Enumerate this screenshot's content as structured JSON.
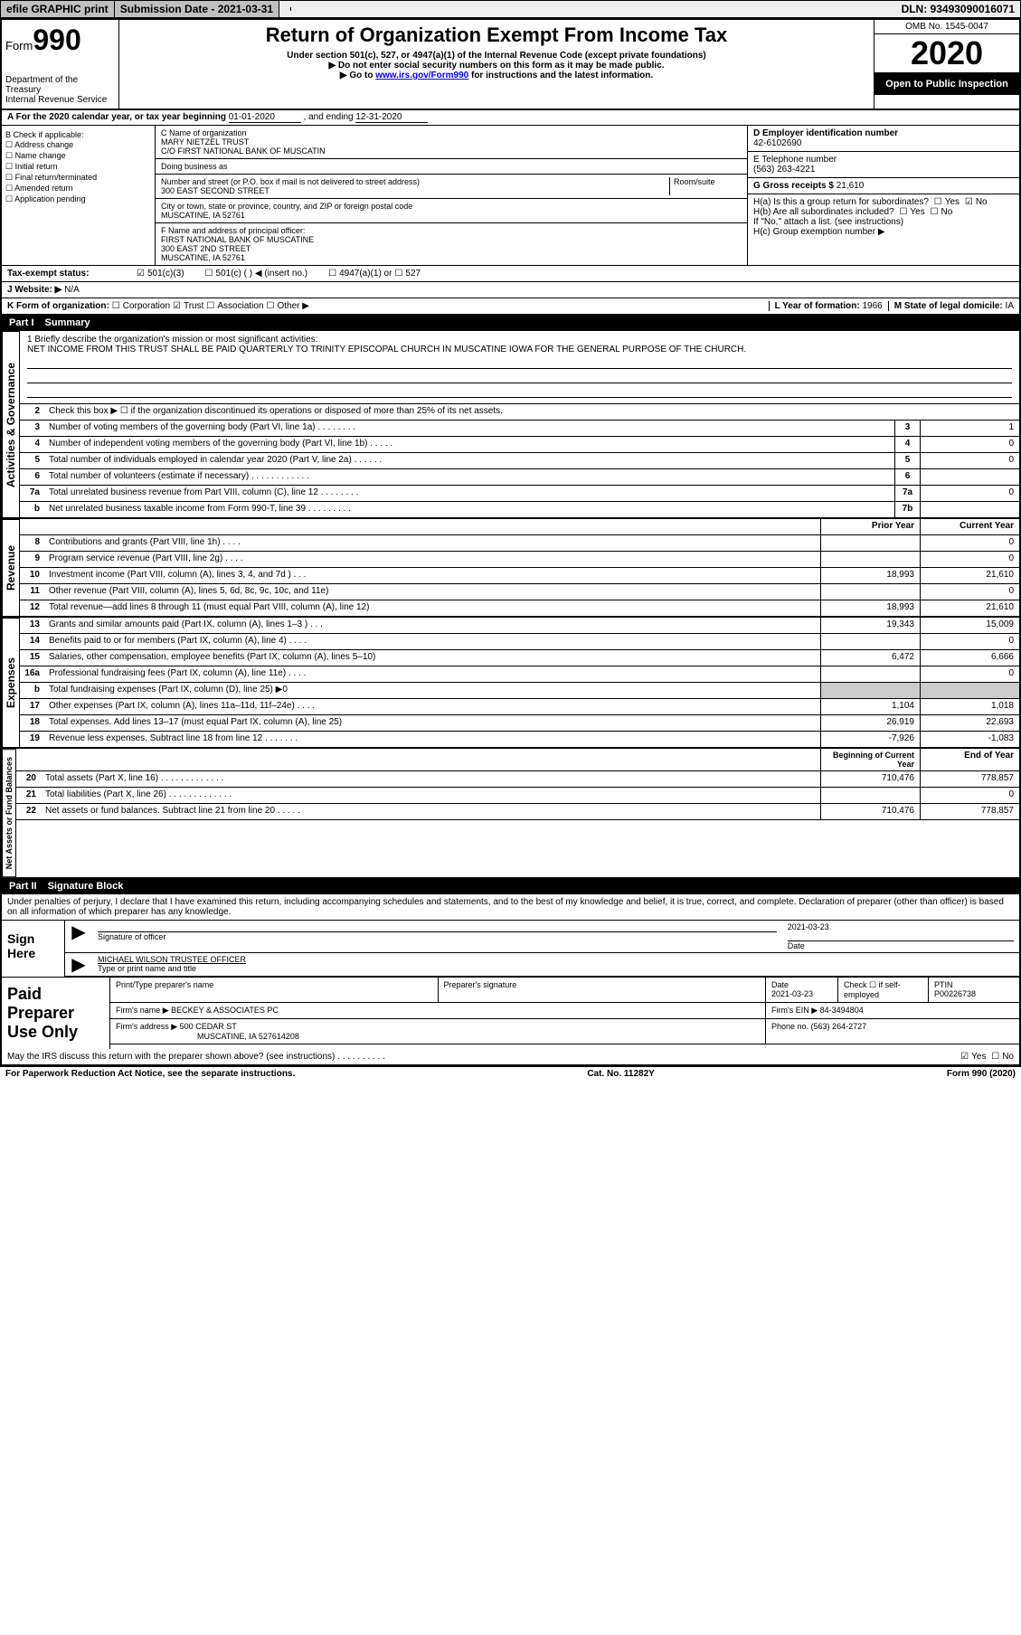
{
  "topbar": {
    "efile": "efile GRAPHIC print",
    "sub_label": "Submission Date - 2021-03-31",
    "dln": "DLN: 93493090016071"
  },
  "header": {
    "form_word": "Form",
    "form_num": "990",
    "dept1": "Department of the Treasury",
    "dept2": "Internal Revenue Service",
    "title": "Return of Organization Exempt From Income Tax",
    "sub1": "Under section 501(c), 527, or 4947(a)(1) of the Internal Revenue Code (except private foundations)",
    "sub2": "▶ Do not enter social security numbers on this form as it may be made public.",
    "sub3_a": "▶ Go to ",
    "sub3_link": "www.irs.gov/Form990",
    "sub3_b": " for instructions and the latest information.",
    "omb": "OMB No. 1545-0047",
    "year": "2020",
    "inspect": "Open to Public Inspection"
  },
  "rowA": {
    "text_a": "A For the 2020 calendar year, or tax year beginning ",
    "begin": "01-01-2020",
    "text_b": " , and ending ",
    "end": "12-31-2020"
  },
  "colB": {
    "hdr": "B Check if applicable:",
    "i1": "Address change",
    "i2": "Name change",
    "i3": "Initial return",
    "i4": "Final return/terminated",
    "i5": "Amended return",
    "i6": "Application pending"
  },
  "colC": {
    "name_lbl": "C Name of organization",
    "name1": "MARY NIETZEL TRUST",
    "name2": "C/O FIRST NATIONAL BANK OF MUSCATIN",
    "dba_lbl": "Doing business as",
    "addr_lbl": "Number and street (or P.O. box if mail is not delivered to street address)",
    "room_lbl": "Room/suite",
    "addr": "300 EAST SECOND STREET",
    "city_lbl": "City or town, state or province, country, and ZIP or foreign postal code",
    "city": "MUSCATINE, IA  52761",
    "off_lbl": "F Name and address of principal officer:",
    "off1": "FIRST NATIONAL BANK OF MUSCATINE",
    "off2": "300 EAST 2ND STREET",
    "off3": "MUSCATINE, IA  52761"
  },
  "colD": {
    "ein_lbl": "D Employer identification number",
    "ein": "42-6102690",
    "tel_lbl": "E Telephone number",
    "tel": "(563) 263-4221",
    "gross_lbl": "G Gross receipts $ ",
    "gross": "21,610",
    "ha": "H(a)  Is this a group return for subordinates?",
    "hb": "H(b)  Are all subordinates included?",
    "hb_note": "If \"No,\" attach a list. (see instructions)",
    "hc": "H(c)  Group exemption number ▶",
    "yes": "Yes",
    "no": "No"
  },
  "taxexempt": {
    "lbl": "Tax-exempt status:",
    "o1": "501(c)(3)",
    "o2": "501(c) (   ) ◀ (insert no.)",
    "o3": "4947(a)(1) or",
    "o4": "527"
  },
  "website": {
    "lbl": "J   Website: ▶",
    "val": "N/A"
  },
  "rowK": {
    "lbl": "K Form of organization:",
    "o1": "Corporation",
    "o2": "Trust",
    "o3": "Association",
    "o4": "Other ▶",
    "l_lbl": "L Year of formation: ",
    "l_val": "1966",
    "m_lbl": "M State of legal domicile: ",
    "m_val": "IA"
  },
  "part1": {
    "num": "Part I",
    "title": "Summary"
  },
  "mission": {
    "lbl": "1  Briefly describe the organization's mission or most significant activities:",
    "txt": "NET INCOME FROM THIS TRUST SHALL BE PAID QUARTERLY TO TRINITY EPISCOPAL CHURCH IN MUSCATINE IOWA FOR THE GENERAL PURPOSE OF THE CHURCH."
  },
  "vtabs": {
    "gov": "Activities & Governance",
    "rev": "Revenue",
    "exp": "Expenses",
    "net": "Net Assets or Fund Balances"
  },
  "lines_gov": [
    {
      "n": "2",
      "t": "Check this box ▶ ☐  if the organization discontinued its operations or disposed of more than 25% of its net assets."
    },
    {
      "n": "3",
      "t": "Number of voting members of the governing body (Part VI, line 1a)   .    .    .    .    .    .    .    .",
      "box": "3",
      "v": "1"
    },
    {
      "n": "4",
      "t": "Number of independent voting members of the governing body (Part VI, line 1b)   .    .    .    .    .",
      "box": "4",
      "v": "0"
    },
    {
      "n": "5",
      "t": "Total number of individuals employed in calendar year 2020 (Part V, line 2a)   .    .    .    .    .    .",
      "box": "5",
      "v": "0"
    },
    {
      "n": "6",
      "t": "Total number of volunteers (estimate if necessary)    .    .    .    .    .    .    .    .    .    .    .    .",
      "box": "6",
      "v": ""
    },
    {
      "n": "7a",
      "t": "Total unrelated business revenue from Part VIII, column (C), line 12   .    .    .    .    .    .    .    .",
      "box": "7a",
      "v": "0"
    },
    {
      "n": "b",
      "t": "Net unrelated business taxable income from Form 990-T, line 39    .    .    .    .    .    .    .    .    .",
      "box": "7b",
      "v": ""
    }
  ],
  "col_hdrs": {
    "py": "Prior Year",
    "cy": "Current Year"
  },
  "lines_rev": [
    {
      "n": "8",
      "t": "Contributions and grants (Part VIII, line 1h)   .    .    .    .",
      "py": "",
      "cy": "0"
    },
    {
      "n": "9",
      "t": "Program service revenue (Part VIII, line 2g)   .    .    .    .",
      "py": "",
      "cy": "0"
    },
    {
      "n": "10",
      "t": "Investment income (Part VIII, column (A), lines 3, 4, and 7d )    .    .    .",
      "py": "18,993",
      "cy": "21,610"
    },
    {
      "n": "11",
      "t": "Other revenue (Part VIII, column (A), lines 5, 6d, 8c, 9c, 10c, and 11e)",
      "py": "",
      "cy": "0"
    },
    {
      "n": "12",
      "t": "Total revenue—add lines 8 through 11 (must equal Part VIII, column (A), line 12)",
      "py": "18,993",
      "cy": "21,610"
    }
  ],
  "lines_exp": [
    {
      "n": "13",
      "t": "Grants and similar amounts paid (Part IX, column (A), lines 1–3 )   .    .    .",
      "py": "19,343",
      "cy": "15,009"
    },
    {
      "n": "14",
      "t": "Benefits paid to or for members (Part IX, column (A), line 4)   .    .    .    .",
      "py": "",
      "cy": "0"
    },
    {
      "n": "15",
      "t": "Salaries, other compensation, employee benefits (Part IX, column (A), lines 5–10)",
      "py": "6,472",
      "cy": "6,666"
    },
    {
      "n": "16a",
      "t": "Professional fundraising fees (Part IX, column (A), line 11e)   .    .    .    .",
      "py": "",
      "cy": "0"
    },
    {
      "n": "b",
      "t": "Total fundraising expenses (Part IX, column (D), line 25) ▶0",
      "py": "GRAY",
      "cy": "GRAY"
    },
    {
      "n": "17",
      "t": "Other expenses (Part IX, column (A), lines 11a–11d, 11f–24e)   .    .    .    .",
      "py": "1,104",
      "cy": "1,018"
    },
    {
      "n": "18",
      "t": "Total expenses. Add lines 13–17 (must equal Part IX, column (A), line 25)",
      "py": "26,919",
      "cy": "22,693"
    },
    {
      "n": "19",
      "t": "Revenue less expenses. Subtract line 18 from line 12   .    .    .    .    .    .    .",
      "py": "-7,926",
      "cy": "-1,083"
    }
  ],
  "col_hdrs2": {
    "by": "Beginning of Current Year",
    "ey": "End of Year"
  },
  "lines_net": [
    {
      "n": "20",
      "t": "Total assets (Part X, line 16)   .    .    .    .    .    .    .    .    .    .    .    .    .",
      "py": "710,476",
      "cy": "778,857"
    },
    {
      "n": "21",
      "t": "Total liabilities (Part X, line 26)   .    .    .    .    .    .    .    .    .    .    .    .    .",
      "py": "",
      "cy": "0"
    },
    {
      "n": "22",
      "t": "Net assets or fund balances. Subtract line 21 from line 20   .    .    .    .    .",
      "py": "710,476",
      "cy": "778,857"
    }
  ],
  "part2": {
    "num": "Part II",
    "title": "Signature Block"
  },
  "penalty": "Under penalties of perjury, I declare that I have examined this return, including accompanying schedules and statements, and to the best of my knowledge and belief, it is true, correct, and complete. Declaration of preparer (other than officer) is based on all information of which preparer has any knowledge.",
  "sign": {
    "here": "Sign Here",
    "sig_lbl": "Signature of officer",
    "date_lbl": "Date",
    "date": "2021-03-23",
    "name": "MICHAEL WILSON  TRUSTEE OFFICER",
    "name_lbl": "Type or print name and title"
  },
  "prep": {
    "lbl": "Paid Preparer Use Only",
    "c1": "Print/Type preparer's name",
    "c2": "Preparer's signature",
    "c3": "Date",
    "c3v": "2021-03-23",
    "c4": "Check ☐ if self-employed",
    "c5": "PTIN",
    "c5v": "P00226738",
    "firm_lbl": "Firm's name    ▶",
    "firm": "BECKEY & ASSOCIATES PC",
    "ein_lbl": "Firm's EIN ▶",
    "ein": "84-3494804",
    "addr_lbl": "Firm's address ▶",
    "addr1": "500 CEDAR ST",
    "addr2": "MUSCATINE, IA  527614208",
    "ph_lbl": "Phone no. ",
    "ph": "(563) 264-2727"
  },
  "discuss": "May the IRS discuss this return with the preparer shown above? (see instructions)    .    .    .    .    .    .    .    .    .    .",
  "footer": {
    "l": "For Paperwork Reduction Act Notice, see the separate instructions.",
    "m": "Cat. No. 11282Y",
    "r": "Form 990 (2020)"
  }
}
